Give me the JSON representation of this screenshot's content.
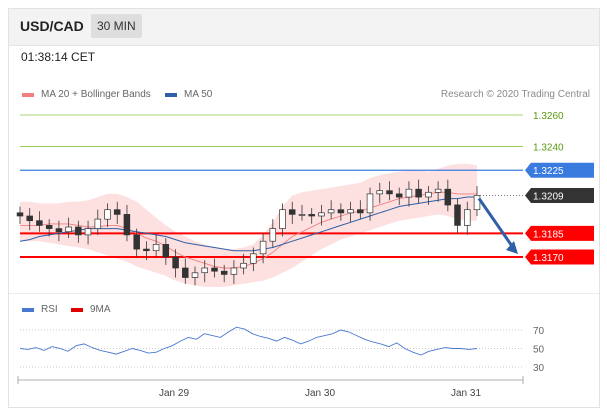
{
  "header": {
    "pair": "USD/CAD",
    "timeframe": "30 MIN"
  },
  "time": "01:38:14 CET",
  "legend": {
    "ma20": {
      "label": "MA 20 + Bollinger Bands",
      "color": "#f08080"
    },
    "ma50": {
      "label": "MA 50",
      "color": "#2f5fa7"
    }
  },
  "copyright": "Research © 2020 Trading Central",
  "rsi_legend": {
    "rsi": {
      "label": "RSI",
      "color": "#4a78d0"
    },
    "ma9": {
      "label": "9MA",
      "color": "#e00000"
    }
  },
  "colors": {
    "resistance": "#8cc63f",
    "pivot": "#3a7be0",
    "support": "#ff0000",
    "current": "#333333",
    "arrow": "#2f5fa7",
    "candle": "#333333",
    "band_fill": "#fcd6d6"
  },
  "chart_data": [
    {
      "type": "candlestick",
      "title": "",
      "ylim": [
        1.3145,
        1.3275
      ],
      "x_ticks": [
        "Jan 29",
        "Jan 30",
        "Jan 31"
      ],
      "current_price": {
        "value": 1.3209,
        "label": "1.3209"
      },
      "levels": [
        {
          "value": 1.326,
          "label": "1.3260",
          "kind": "resistance"
        },
        {
          "value": 1.324,
          "label": "1.3240",
          "kind": "resistance"
        },
        {
          "value": 1.3225,
          "label": "1.3225",
          "kind": "pivot"
        },
        {
          "value": 1.3185,
          "label": "1.3185",
          "kind": "support"
        },
        {
          "value": 1.317,
          "label": "1.3170",
          "kind": "support"
        }
      ],
      "projection": {
        "from": 1.3209,
        "to": 1.317
      },
      "close_series": [
        1.3196,
        1.3193,
        1.319,
        1.3188,
        1.3186,
        1.3189,
        1.3184,
        1.3188,
        1.3194,
        1.32,
        1.3197,
        1.3184,
        1.3175,
        1.3174,
        1.3178,
        1.317,
        1.3163,
        1.3157,
        1.316,
        1.3163,
        1.3161,
        1.3159,
        1.3163,
        1.3166,
        1.3172,
        1.318,
        1.3188,
        1.32,
        1.3197,
        1.3197,
        1.3196,
        1.3198,
        1.32,
        1.3198,
        1.32,
        1.3198,
        1.321,
        1.3212,
        1.321,
        1.3208,
        1.3213,
        1.3208,
        1.3211,
        1.3213,
        1.3203,
        1.319,
        1.32,
        1.3209
      ],
      "ma20": [
        1.319,
        1.319,
        1.319,
        1.3191,
        1.3191,
        1.3191,
        1.319,
        1.3189,
        1.3189,
        1.319,
        1.319,
        1.3188,
        1.3185,
        1.3182,
        1.318,
        1.3177,
        1.3173,
        1.317,
        1.3168,
        1.3166,
        1.3164,
        1.3163,
        1.3163,
        1.3164,
        1.3166,
        1.3169,
        1.3173,
        1.3178,
        1.3183,
        1.3186,
        1.3189,
        1.3192,
        1.3194,
        1.3196,
        1.3198,
        1.3199,
        1.3201,
        1.3203,
        1.3205,
        1.3207,
        1.3208,
        1.3209,
        1.321,
        1.3211,
        1.3211,
        1.321,
        1.321,
        1.321
      ],
      "ma50": [
        1.318,
        1.3181,
        1.3183,
        1.3184,
        1.3185,
        1.3186,
        1.3187,
        1.3188,
        1.3188,
        1.3188,
        1.3188,
        1.3187,
        1.3186,
        1.3185,
        1.3184,
        1.3183,
        1.3181,
        1.3179,
        1.3178,
        1.3177,
        1.3176,
        1.3175,
        1.3174,
        1.3174,
        1.3174,
        1.3175,
        1.3176,
        1.3178,
        1.318,
        1.3182,
        1.3184,
        1.3186,
        1.3188,
        1.319,
        1.3192,
        1.3194,
        1.3196,
        1.3198,
        1.32,
        1.3202,
        1.3203,
        1.3204,
        1.3205,
        1.3206,
        1.3207,
        1.3207,
        1.3208,
        1.3208
      ],
      "band_upper": [
        1.3205,
        1.3205,
        1.3204,
        1.3204,
        1.3204,
        1.3205,
        1.3205,
        1.3206,
        1.3208,
        1.321,
        1.321,
        1.3208,
        1.3205,
        1.32,
        1.3195,
        1.319,
        1.3186,
        1.3183,
        1.318,
        1.3178,
        1.3176,
        1.3175,
        1.3175,
        1.3176,
        1.3178,
        1.3184,
        1.3192,
        1.3202,
        1.3209,
        1.3211,
        1.3212,
        1.3213,
        1.3214,
        1.3215,
        1.3216,
        1.3217,
        1.322,
        1.3222,
        1.3223,
        1.3224,
        1.3225,
        1.3225,
        1.3224,
        1.3226,
        1.3228,
        1.3229,
        1.3229,
        1.3228
      ],
      "band_lower": [
        1.318,
        1.318,
        1.318,
        1.3179,
        1.3178,
        1.3177,
        1.3176,
        1.3175,
        1.3173,
        1.3171,
        1.3169,
        1.3167,
        1.3164,
        1.3162,
        1.316,
        1.3158,
        1.3155,
        1.3153,
        1.3152,
        1.3151,
        1.3151,
        1.3151,
        1.3152,
        1.3153,
        1.3154,
        1.3155,
        1.3157,
        1.316,
        1.3163,
        1.3167,
        1.3171,
        1.3175,
        1.3178,
        1.3181,
        1.3183,
        1.3185,
        1.3187,
        1.3189,
        1.3191,
        1.3193,
        1.3194,
        1.3195,
        1.3196,
        1.3197,
        1.3196,
        1.3194,
        1.3193,
        1.3193
      ]
    },
    {
      "type": "line",
      "title": "RSI",
      "ylim": [
        20,
        80
      ],
      "y_ticks": [
        70,
        50,
        30
      ],
      "series": [
        {
          "name": "RSI",
          "values": [
            50,
            49,
            51,
            48,
            52,
            50,
            47,
            53,
            55,
            51,
            48,
            46,
            44,
            47,
            50,
            48,
            45,
            46,
            50,
            53,
            58,
            62,
            60,
            66,
            64,
            62,
            68,
            73,
            71,
            66,
            63,
            61,
            58,
            62,
            59,
            55,
            58,
            62,
            64,
            66,
            70,
            68,
            64,
            60,
            57,
            55,
            52,
            56,
            50,
            46,
            43,
            47,
            49,
            51,
            50,
            50,
            49,
            50
          ]
        },
        {
          "name": "9MA",
          "values": []
        }
      ]
    }
  ]
}
